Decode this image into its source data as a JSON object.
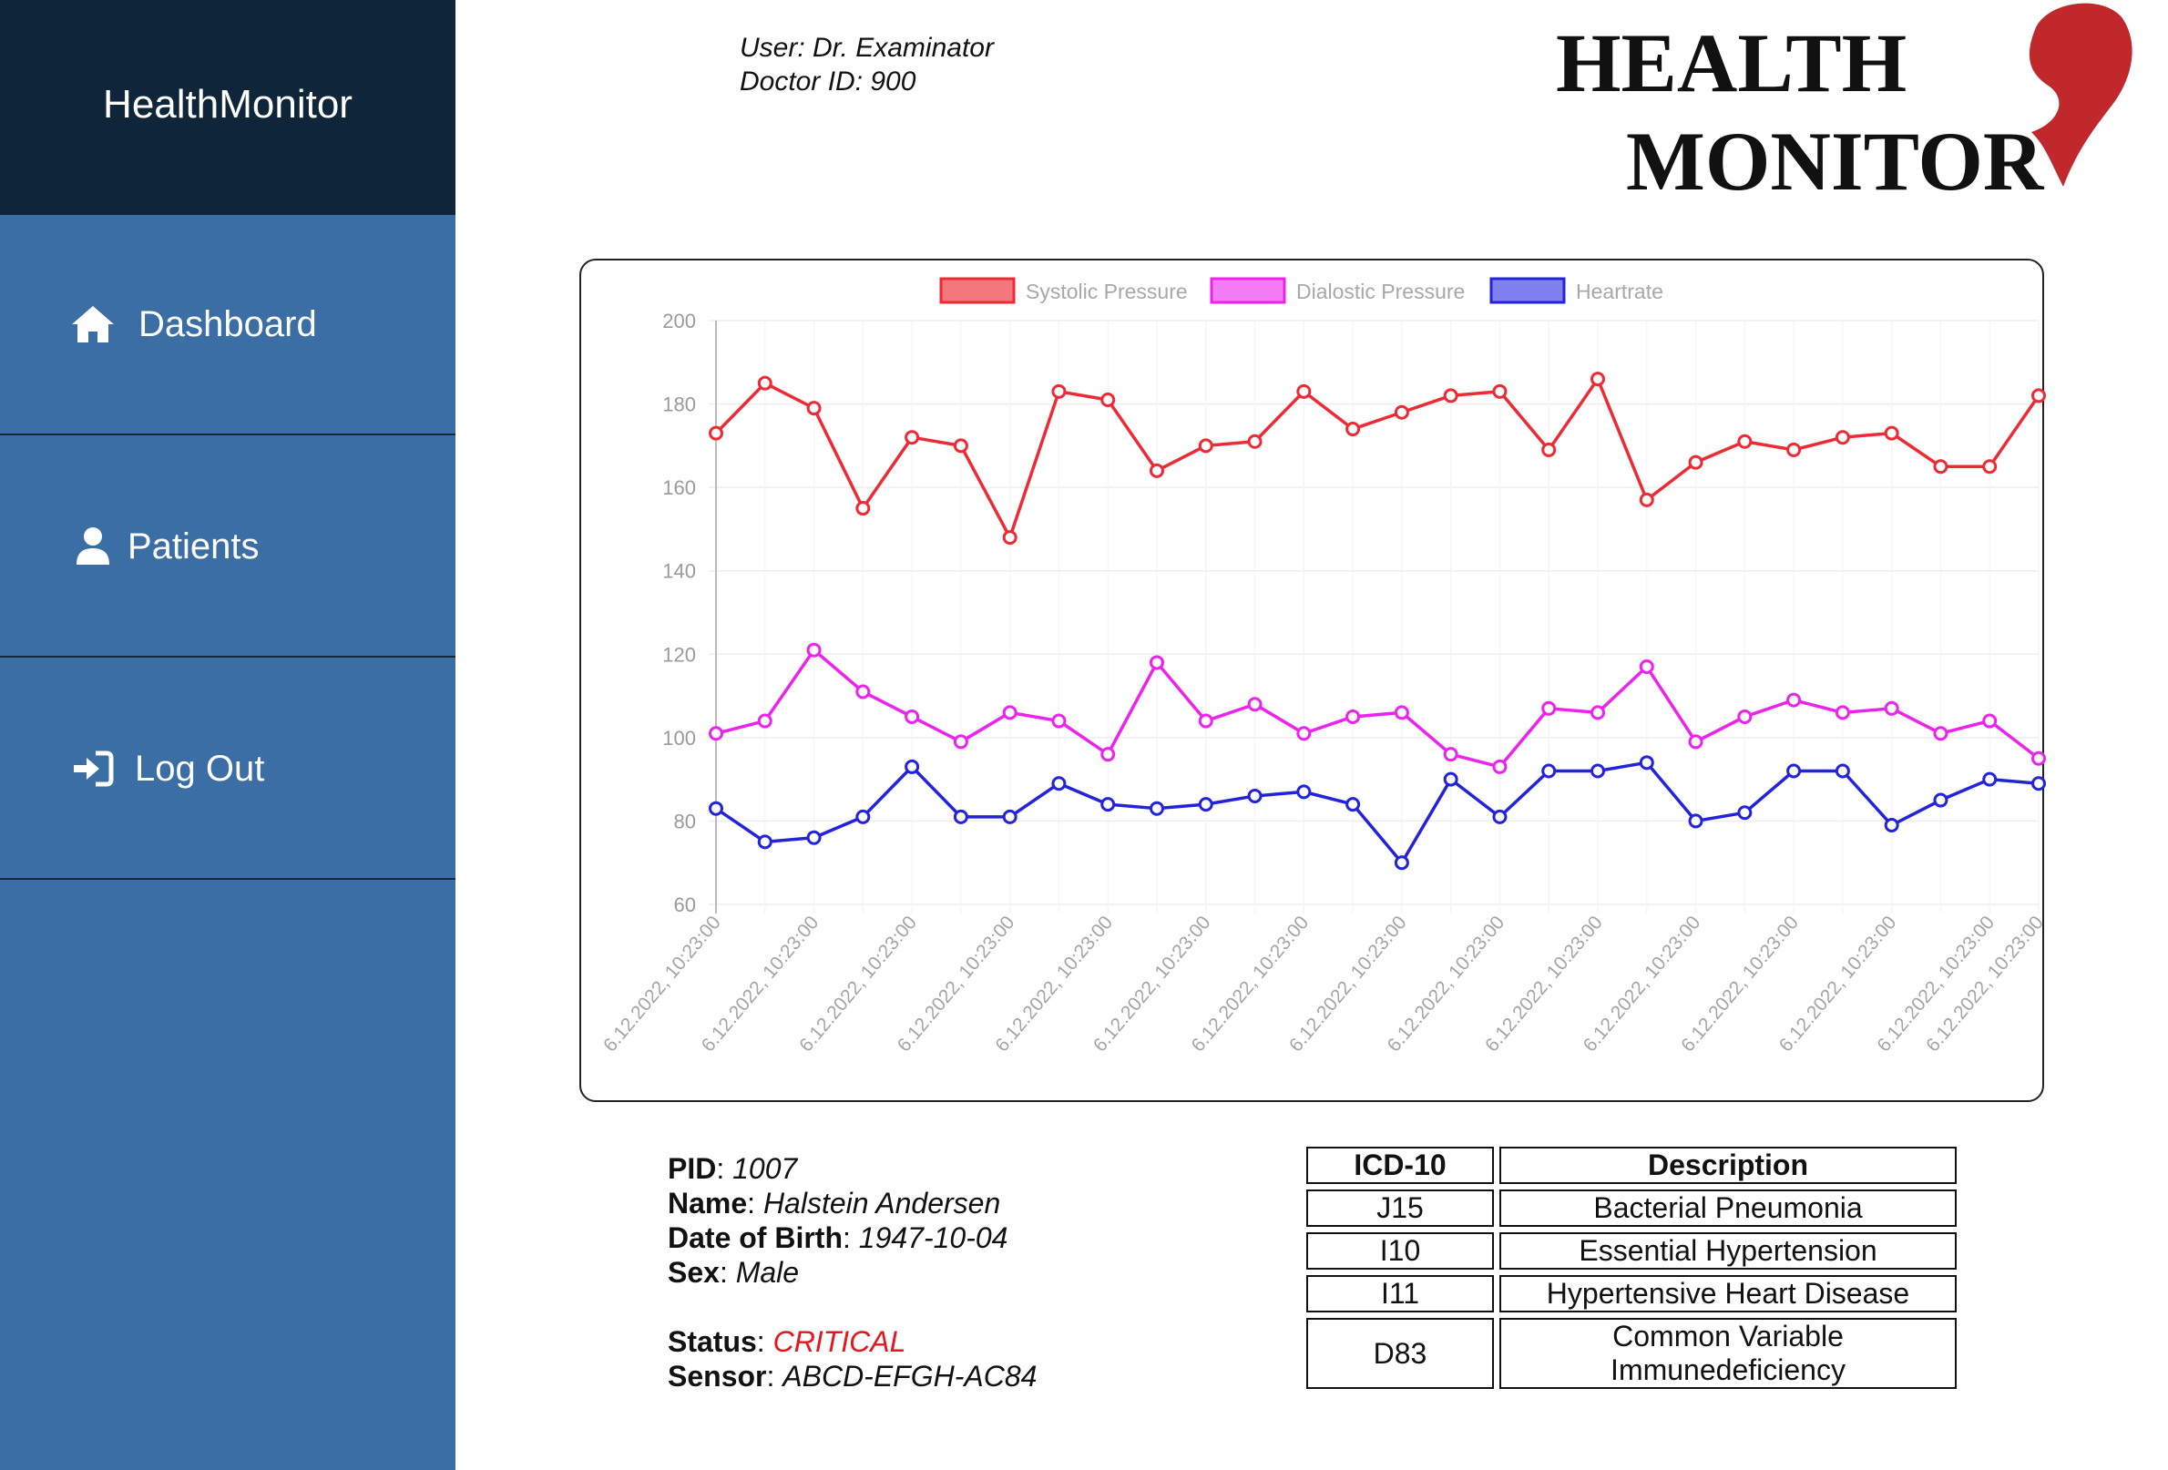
{
  "app": {
    "brand": "HealthMonitor"
  },
  "sidebar": {
    "items": [
      {
        "label": "Dashboard",
        "icon": "home-icon"
      },
      {
        "label": "Patients",
        "icon": "user-icon"
      },
      {
        "label": "Log Out",
        "icon": "sign-in-icon"
      }
    ]
  },
  "user": {
    "line1": "User: Dr. Examinator",
    "line2": "Doctor ID: 900"
  },
  "logo": {
    "line1": "HEALTH",
    "line2": "MONITOR",
    "mark_color": "#c0282b"
  },
  "chart_data": {
    "type": "line",
    "x": [
      "6.12.2022, 10:23:00",
      "6.12.2022, 10:23:00",
      "6.12.2022, 10:23:00",
      "6.12.2022, 10:23:00",
      "6.12.2022, 10:23:00",
      "6.12.2022, 10:23:00",
      "6.12.2022, 10:23:00",
      "6.12.2022, 10:23:00",
      "6.12.2022, 10:23:00",
      "6.12.2022, 10:23:00",
      "6.12.2022, 10:23:00",
      "6.12.2022, 10:23:00",
      "6.12.2022, 10:23:00",
      "6.12.2022, 10:23:00",
      "6.12.2022, 10:23:00",
      "6.12.2022, 10:23:00",
      "6.12.2022, 10:23:00",
      "6.12.2022, 10:23:00",
      "6.12.2022, 10:23:00",
      "6.12.2022, 10:23:00",
      "6.12.2022, 10:23:00",
      "6.12.2022, 10:23:00",
      "6.12.2022, 10:23:00",
      "6.12.2022, 10:23:00",
      "6.12.2022, 10:23:00",
      "6.12.2022, 10:23:00",
      "6.12.2022, 10:23:00",
      "6.12.2022, 10:23:00"
    ],
    "x_tick_labels": [
      "6.12.2022, 10:23:00",
      "6.12.2022, 10:23:00",
      "6.12.2022, 10:23:00",
      "6.12.2022, 10:23:00",
      "6.12.2022, 10:23:00",
      "6.12.2022, 10:23:00",
      "6.12.2022, 10:23:00",
      "6.12.2022, 10:23:00",
      "6.12.2022, 10:23:00",
      "6.12.2022, 10:23:00",
      "6.12.2022, 10:23:00",
      "6.12.2022, 10:23:00",
      "6.12.2022, 10:23:00",
      "6.12.2022, 10:23:00",
      "6.12.2022, 10:23:00"
    ],
    "series": [
      {
        "name": "Systolic Pressure",
        "color": "#ee2a35",
        "values": [
          173,
          185,
          179,
          155,
          172,
          170,
          148,
          183,
          181,
          164,
          170,
          171,
          183,
          174,
          178,
          182,
          183,
          169,
          186,
          157,
          166,
          171,
          169,
          172,
          173,
          165,
          165,
          182
        ]
      },
      {
        "name": "Dialostic Pressure",
        "color": "#ee22ee",
        "values": [
          101,
          104,
          121,
          111,
          105,
          99,
          106,
          104,
          96,
          118,
          104,
          108,
          101,
          105,
          106,
          96,
          93,
          107,
          106,
          117,
          99,
          105,
          109,
          106,
          107,
          101,
          104,
          95
        ]
      },
      {
        "name": "Heartrate",
        "color": "#2323dd",
        "values": [
          83,
          75,
          76,
          81,
          93,
          81,
          81,
          89,
          84,
          83,
          84,
          86,
          87,
          84,
          70,
          90,
          81,
          92,
          92,
          94,
          80,
          82,
          92,
          92,
          79,
          85,
          90,
          89
        ]
      }
    ],
    "ylim": [
      60,
      200
    ],
    "y_ticks": [
      60,
      80,
      100,
      120,
      140,
      160,
      180,
      200
    ],
    "grid": true,
    "legend": "top-center"
  },
  "patient": {
    "pid_label": "PID",
    "pid": "1007",
    "name_label": "Name",
    "name": "Halstein Andersen",
    "dob_label": "Date of Birth",
    "dob": "1947-10-04",
    "sex_label": "Sex",
    "sex": "Male",
    "status_label": "Status",
    "status": "CRITICAL",
    "status_color": "#e8151b",
    "sensor_label": "Sensor",
    "sensor": "ABCD-EFGH-AC84"
  },
  "diagnoses": {
    "headers": [
      "ICD-10",
      "Description"
    ],
    "rows": [
      {
        "code": "J15",
        "description": "Bacterial Pneumonia"
      },
      {
        "code": "I10",
        "description": "Essential Hypertension"
      },
      {
        "code": "I11",
        "description": "Hypertensive Heart Disease"
      },
      {
        "code": "D83",
        "description": "Common Variable Immunedeficiency"
      }
    ]
  }
}
